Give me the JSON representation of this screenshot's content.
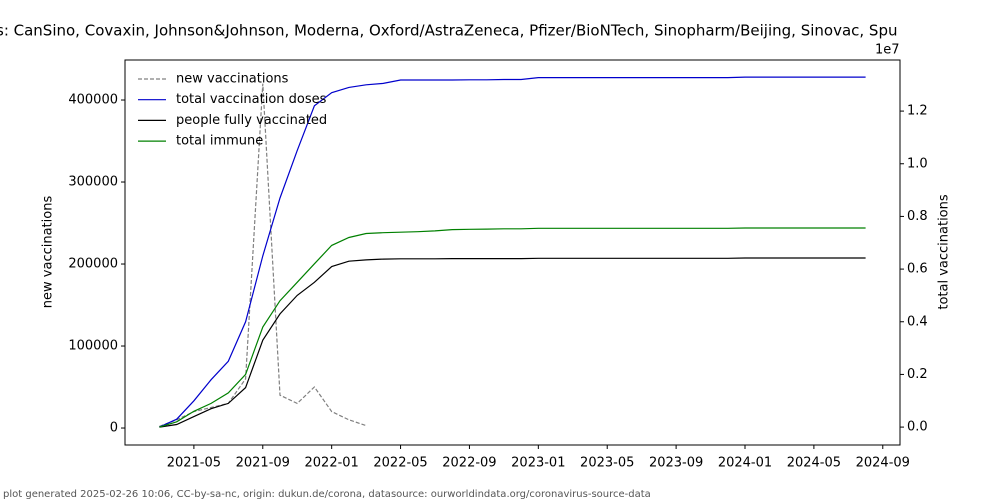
{
  "chart_data": {
    "type": "line",
    "title": "s: CanSino, Covaxin, Johnson&Johnson, Moderna, Oxford/AstraZeneca, Pfizer/BioNTech, Sinopharm/Beijing, Sinovac, Spu",
    "y_label": "new vaccinations",
    "y2_label": "total vaccinations",
    "y2_offset_label": "1e7",
    "footer": "plot generated 2025-02-26 10:06, CC-by-sa-nc, origin: dukun.de/corona, datasource: ourworldindata.org/coronavirus-source-data",
    "legend": "upper left",
    "x": [
      "2021-03",
      "2021-04",
      "2021-05",
      "2021-06",
      "2021-07",
      "2021-08",
      "2021-09",
      "2021-10",
      "2021-11",
      "2021-12",
      "2022-01",
      "2022-02",
      "2022-03",
      "2022-04",
      "2022-05",
      "2022-06",
      "2022-07",
      "2022-08",
      "2022-09",
      "2022-10",
      "2022-11",
      "2022-12",
      "2023-01",
      "2023-02",
      "2023-03",
      "2023-04",
      "2023-05",
      "2023-06",
      "2023-07",
      "2023-08",
      "2023-09",
      "2023-10",
      "2023-11",
      "2023-12",
      "2024-01",
      "2024-02",
      "2024-03",
      "2024-04",
      "2024-05",
      "2024-06",
      "2024-07",
      "2024-08"
    ],
    "xlim": [
      "2021-01",
      "2024-10"
    ],
    "xticks": [
      "2021-05",
      "2021-09",
      "2022-01",
      "2022-05",
      "2022-09",
      "2023-01",
      "2023-05",
      "2023-09",
      "2024-01",
      "2024-05",
      "2024-09"
    ],
    "ylim": [
      -20700,
      448800
    ],
    "yticks": [
      0,
      100000,
      200000,
      300000,
      400000
    ],
    "y2lim": [
      -680000,
      13940000
    ],
    "y2ticks": [
      {
        "value": 0,
        "label": "0.0"
      },
      {
        "value": 2000000,
        "label": "0.2"
      },
      {
        "value": 4000000,
        "label": "0.4"
      },
      {
        "value": 6000000,
        "label": "0.6"
      },
      {
        "value": 8000000,
        "label": "0.8"
      },
      {
        "value": 10000000,
        "label": "1.0"
      },
      {
        "value": 12000000,
        "label": "1.2"
      }
    ],
    "series": [
      {
        "name": "new vaccinations",
        "color": "#808080",
        "dash": true,
        "axis": "y",
        "values": [
          2000,
          10000,
          20000,
          25000,
          30000,
          60000,
          420000,
          40000,
          30000,
          50000,
          20000,
          10000,
          3000,
          null,
          null,
          null,
          null,
          null,
          null,
          null,
          null,
          null,
          null,
          null,
          null,
          null,
          null,
          null,
          null,
          null,
          null,
          null,
          null,
          null,
          null,
          null,
          null,
          null,
          null,
          null,
          null,
          null
        ]
      },
      {
        "name": "total vaccination doses",
        "color": "#0000cc",
        "dash": false,
        "axis": "y2",
        "values": [
          0,
          300000,
          1000000,
          1800000,
          2500000,
          4000000,
          6500000,
          8700000,
          10500000,
          12200000,
          12700000,
          12900000,
          13000000,
          13050000,
          13180000,
          13180000,
          13180000,
          13180000,
          13190000,
          13190000,
          13200000,
          13200000,
          13270000,
          13270000,
          13270000,
          13270000,
          13270000,
          13270000,
          13270000,
          13270000,
          13270000,
          13270000,
          13270000,
          13270000,
          13290000,
          13290000,
          13290000,
          13290000,
          13290000,
          13290000,
          13290000,
          13290000
        ]
      },
      {
        "name": "people fully vaccinated",
        "color": "#000000",
        "dash": false,
        "axis": "y2",
        "values": [
          0,
          100000,
          400000,
          700000,
          900000,
          1500000,
          3300000,
          4300000,
          5000000,
          5500000,
          6100000,
          6300000,
          6350000,
          6380000,
          6390000,
          6390000,
          6390000,
          6400000,
          6400000,
          6400000,
          6400000,
          6400000,
          6410000,
          6410000,
          6410000,
          6410000,
          6410000,
          6410000,
          6410000,
          6410000,
          6410000,
          6410000,
          6410000,
          6410000,
          6420000,
          6420000,
          6420000,
          6420000,
          6420000,
          6420000,
          6420000,
          6420000
        ]
      },
      {
        "name": "total immune",
        "color": "#008000",
        "dash": false,
        "axis": "y2",
        "values": [
          0,
          200000,
          600000,
          900000,
          1300000,
          2000000,
          3800000,
          4800000,
          5500000,
          6200000,
          6900000,
          7200000,
          7350000,
          7380000,
          7400000,
          7420000,
          7450000,
          7500000,
          7510000,
          7520000,
          7530000,
          7530000,
          7550000,
          7550000,
          7550000,
          7550000,
          7550000,
          7550000,
          7550000,
          7550000,
          7550000,
          7550000,
          7550000,
          7550000,
          7560000,
          7560000,
          7560000,
          7560000,
          7560000,
          7560000,
          7560000,
          7560000
        ]
      }
    ]
  }
}
